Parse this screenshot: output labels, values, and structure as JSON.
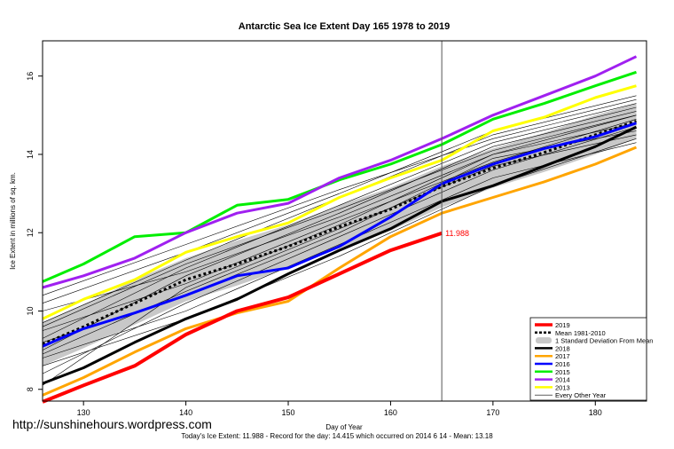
{
  "chart_data": {
    "type": "line",
    "title": "Antarctic Sea Ice Extent Day 165 1978 to 2019",
    "xlabel": "Day of Year",
    "ylabel": "Ice Extent in millions of sq. km.",
    "xlim": [
      126,
      185
    ],
    "ylim": [
      7.7,
      16.9
    ],
    "xticks": [
      130,
      140,
      150,
      160,
      170,
      180
    ],
    "yticks": [
      8,
      10,
      12,
      14,
      16
    ],
    "current_day": 165,
    "current_value_label": "11.988",
    "footer": "Today's Ice Extent: 11.988  - Record for the day: 14.415 which occurred on 2014 6 14  - Mean: 13.18",
    "legend": [
      {
        "label": "2019",
        "color": "#ff0000",
        "style": "thick"
      },
      {
        "label": "Mean 1981-2010",
        "color": "#000000",
        "style": "dotted"
      },
      {
        "label": "1 Standard Deviation From Mean",
        "color": "#c8c8c8",
        "style": "band"
      },
      {
        "label": "2018",
        "color": "#000000",
        "style": "solid"
      },
      {
        "label": "2017",
        "color": "#ffa500",
        "style": "solid"
      },
      {
        "label": "2016",
        "color": "#0000ff",
        "style": "solid"
      },
      {
        "label": "2015",
        "color": "#00ee00",
        "style": "solid"
      },
      {
        "label": "2014",
        "color": "#a020f0",
        "style": "solid"
      },
      {
        "label": "2013",
        "color": "#ffff00",
        "style": "solid"
      },
      {
        "label": "Every Other Year",
        "color": "#000000",
        "style": "thin"
      }
    ],
    "series": [
      {
        "name": "2019",
        "color": "#ff0000",
        "width": 4,
        "x": [
          126,
          130,
          135,
          140,
          145,
          150,
          155,
          160,
          165
        ],
        "y": [
          7.68,
          8.1,
          8.6,
          9.4,
          10.0,
          10.35,
          10.95,
          11.55,
          11.988
        ]
      },
      {
        "name": "Mean 1981-2010",
        "color": "#000000",
        "width": 3,
        "dash": "3,3",
        "x": [
          126,
          130,
          135,
          140,
          145,
          150,
          155,
          160,
          165,
          170,
          175,
          180,
          184
        ],
        "y": [
          9.15,
          9.6,
          10.2,
          10.8,
          11.2,
          11.65,
          12.15,
          12.6,
          13.18,
          13.65,
          14.05,
          14.5,
          14.85
        ]
      },
      {
        "name": "2018",
        "color": "#000000",
        "width": 3,
        "x": [
          126,
          130,
          135,
          140,
          145,
          150,
          155,
          160,
          165,
          170,
          175,
          180,
          184
        ],
        "y": [
          8.15,
          8.55,
          9.2,
          9.8,
          10.3,
          10.95,
          11.55,
          12.1,
          12.8,
          13.2,
          13.7,
          14.2,
          14.7
        ]
      },
      {
        "name": "2017",
        "color": "#ffa500",
        "width": 3,
        "x": [
          126,
          130,
          135,
          140,
          145,
          150,
          155,
          160,
          165,
          170,
          175,
          180,
          184
        ],
        "y": [
          7.85,
          8.3,
          8.95,
          9.55,
          9.95,
          10.25,
          11.1,
          11.9,
          12.5,
          12.9,
          13.3,
          13.75,
          14.18
        ]
      },
      {
        "name": "2016",
        "color": "#0000ff",
        "width": 3,
        "x": [
          126,
          130,
          135,
          140,
          145,
          150,
          155,
          160,
          165,
          170,
          175,
          180,
          184
        ],
        "y": [
          9.1,
          9.55,
          9.95,
          10.4,
          10.9,
          11.1,
          11.65,
          12.4,
          13.25,
          13.75,
          14.15,
          14.45,
          14.8
        ]
      },
      {
        "name": "2015",
        "color": "#00ee00",
        "width": 3,
        "x": [
          126,
          130,
          135,
          140,
          145,
          150,
          155,
          160,
          165,
          170,
          175,
          180,
          184
        ],
        "y": [
          10.75,
          11.2,
          11.9,
          12.0,
          12.7,
          12.85,
          13.35,
          13.75,
          14.25,
          14.9,
          15.3,
          15.75,
          16.1
        ]
      },
      {
        "name": "2014",
        "color": "#a020f0",
        "width": 3,
        "x": [
          126,
          130,
          135,
          140,
          145,
          150,
          155,
          160,
          165,
          170,
          175,
          180,
          184
        ],
        "y": [
          10.6,
          10.9,
          11.35,
          12.0,
          12.5,
          12.75,
          13.4,
          13.85,
          14.4,
          15.0,
          15.5,
          16.0,
          16.5
        ]
      },
      {
        "name": "2013",
        "color": "#ffff00",
        "width": 3,
        "x": [
          126,
          130,
          135,
          140,
          145,
          150,
          155,
          160,
          165,
          170,
          175,
          180,
          184
        ],
        "y": [
          9.8,
          10.3,
          10.8,
          11.5,
          11.9,
          12.25,
          12.9,
          13.4,
          13.85,
          14.6,
          14.95,
          15.45,
          15.75
        ]
      }
    ],
    "sd_band": {
      "x": [
        126,
        130,
        135,
        140,
        145,
        150,
        155,
        160,
        165,
        170,
        175,
        180,
        184
      ],
      "upper": [
        9.7,
        10.15,
        10.8,
        11.35,
        11.8,
        12.2,
        12.7,
        13.15,
        13.7,
        14.15,
        14.55,
        15.0,
        15.3
      ],
      "lower": [
        8.6,
        9.05,
        9.65,
        10.25,
        10.65,
        11.1,
        11.6,
        12.05,
        12.65,
        13.15,
        13.55,
        14.0,
        14.4
      ]
    },
    "other_years": [
      {
        "x": [
          126,
          140,
          155,
          170,
          184
        ],
        "y": [
          8.1,
          10.6,
          12.2,
          14.0,
          15.0
        ]
      },
      {
        "x": [
          126,
          140,
          155,
          170,
          184
        ],
        "y": [
          8.4,
          10.2,
          11.9,
          13.6,
          14.7
        ]
      },
      {
        "x": [
          126,
          140,
          155,
          170,
          184
        ],
        "y": [
          8.8,
          10.0,
          11.7,
          13.4,
          14.3
        ]
      },
      {
        "x": [
          126,
          140,
          155,
          170,
          184
        ],
        "y": [
          9.0,
          10.9,
          12.5,
          14.2,
          15.1
        ]
      },
      {
        "x": [
          126,
          140,
          155,
          170,
          184
        ],
        "y": [
          9.3,
          11.1,
          12.7,
          14.3,
          15.2
        ]
      },
      {
        "x": [
          126,
          140,
          155,
          170,
          184
        ],
        "y": [
          9.5,
          10.7,
          12.3,
          13.8,
          14.9
        ]
      },
      {
        "x": [
          126,
          140,
          155,
          170,
          184
        ],
        "y": [
          9.7,
          11.3,
          12.9,
          14.5,
          15.4
        ]
      },
      {
        "x": [
          126,
          140,
          155,
          170,
          184
        ],
        "y": [
          10.0,
          11.0,
          12.4,
          14.0,
          14.8
        ]
      },
      {
        "x": [
          126,
          140,
          155,
          170,
          184
        ],
        "y": [
          10.2,
          11.5,
          13.0,
          14.6,
          15.5
        ]
      },
      {
        "x": [
          126,
          140,
          155,
          170,
          184
        ],
        "y": [
          8.6,
          9.8,
          11.4,
          13.2,
          14.4
        ]
      },
      {
        "x": [
          126,
          140,
          155,
          170,
          184
        ],
        "y": [
          9.2,
          10.4,
          12.0,
          13.9,
          14.6
        ]
      },
      {
        "x": [
          126,
          140,
          155,
          170,
          184
        ],
        "y": [
          8.9,
          10.5,
          12.1,
          13.7,
          14.5
        ]
      },
      {
        "x": [
          126,
          140,
          155,
          170,
          184
        ],
        "y": [
          9.6,
          11.2,
          12.6,
          14.1,
          15.0
        ]
      },
      {
        "x": [
          126,
          140,
          155,
          170,
          184
        ],
        "y": [
          10.4,
          11.7,
          13.1,
          14.4,
          15.3
        ]
      }
    ]
  },
  "watermark": "http://sunshinehours.wordpress.com"
}
